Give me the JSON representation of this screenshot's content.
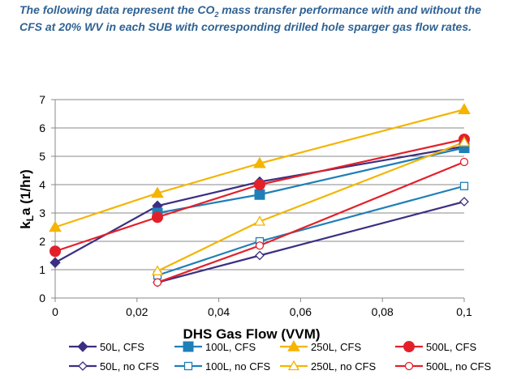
{
  "caption": {
    "part1": "The following data represent the CO",
    "sub": "2",
    "part2": " mass transfer performance with and without the CFS at 20% WV in each SUB with corresponding drilled hole sparger gas flow rates."
  },
  "chart_data": {
    "type": "line",
    "title": "",
    "xlabel": "DHS Gas Flow (VVM)",
    "ylabel_main": "k",
    "ylabel_sub": "L",
    "ylabel_rest": "a (1/hr)",
    "xlim": [
      0,
      0.1
    ],
    "ylim": [
      0,
      7
    ],
    "x_ticks": [
      0,
      0.02,
      0.04,
      0.06,
      0.08,
      0.1
    ],
    "x_tick_labels": [
      "0",
      "0,02",
      "0,04",
      "0,06",
      "0,08",
      "0,1"
    ],
    "y_ticks": [
      0,
      1,
      2,
      3,
      4,
      5,
      6,
      7
    ],
    "y_tick_labels": [
      "0",
      "1",
      "2",
      "3",
      "4",
      "5",
      "6",
      "7"
    ],
    "grid": "horizontal",
    "legend_position": "bottom",
    "series": [
      {
        "name": "50L, CFS",
        "color": "#3b2f82",
        "marker": "diamond",
        "filled": true,
        "x": [
          0,
          0.025,
          0.05,
          0.1
        ],
        "y": [
          1.25,
          3.25,
          4.1,
          5.35
        ]
      },
      {
        "name": "100L, CFS",
        "color": "#1f7fb8",
        "marker": "square",
        "filled": true,
        "x": [
          0.025,
          0.05,
          0.1
        ],
        "y": [
          3.0,
          3.65,
          5.3
        ]
      },
      {
        "name": "250L, CFS",
        "color": "#f5b400",
        "marker": "triangle",
        "filled": true,
        "x": [
          0,
          0.025,
          0.05,
          0.1
        ],
        "y": [
          2.5,
          3.7,
          4.75,
          6.65
        ]
      },
      {
        "name": "500L, CFS",
        "color": "#e3202a",
        "marker": "circle",
        "filled": true,
        "x": [
          0,
          0.025,
          0.05,
          0.1
        ],
        "y": [
          1.65,
          2.85,
          4.0,
          5.6
        ]
      },
      {
        "name": "50L, no CFS",
        "color": "#3b2f82",
        "marker": "diamond",
        "filled": false,
        "x": [
          0.025,
          0.05,
          0.1
        ],
        "y": [
          0.55,
          1.5,
          3.4
        ]
      },
      {
        "name": "100L, no CFS",
        "color": "#1f7fb8",
        "marker": "square",
        "filled": false,
        "x": [
          0.025,
          0.05,
          0.1
        ],
        "y": [
          0.8,
          2.0,
          3.95
        ]
      },
      {
        "name": "250L, no CFS",
        "color": "#f5b400",
        "marker": "triangle",
        "filled": false,
        "x": [
          0.025,
          0.05,
          0.1
        ],
        "y": [
          0.95,
          2.7,
          5.5
        ]
      },
      {
        "name": "500L, no CFS",
        "color": "#e3202a",
        "marker": "circle",
        "filled": false,
        "x": [
          0.025,
          0.05,
          0.1
        ],
        "y": [
          0.55,
          1.85,
          4.8
        ]
      }
    ]
  }
}
